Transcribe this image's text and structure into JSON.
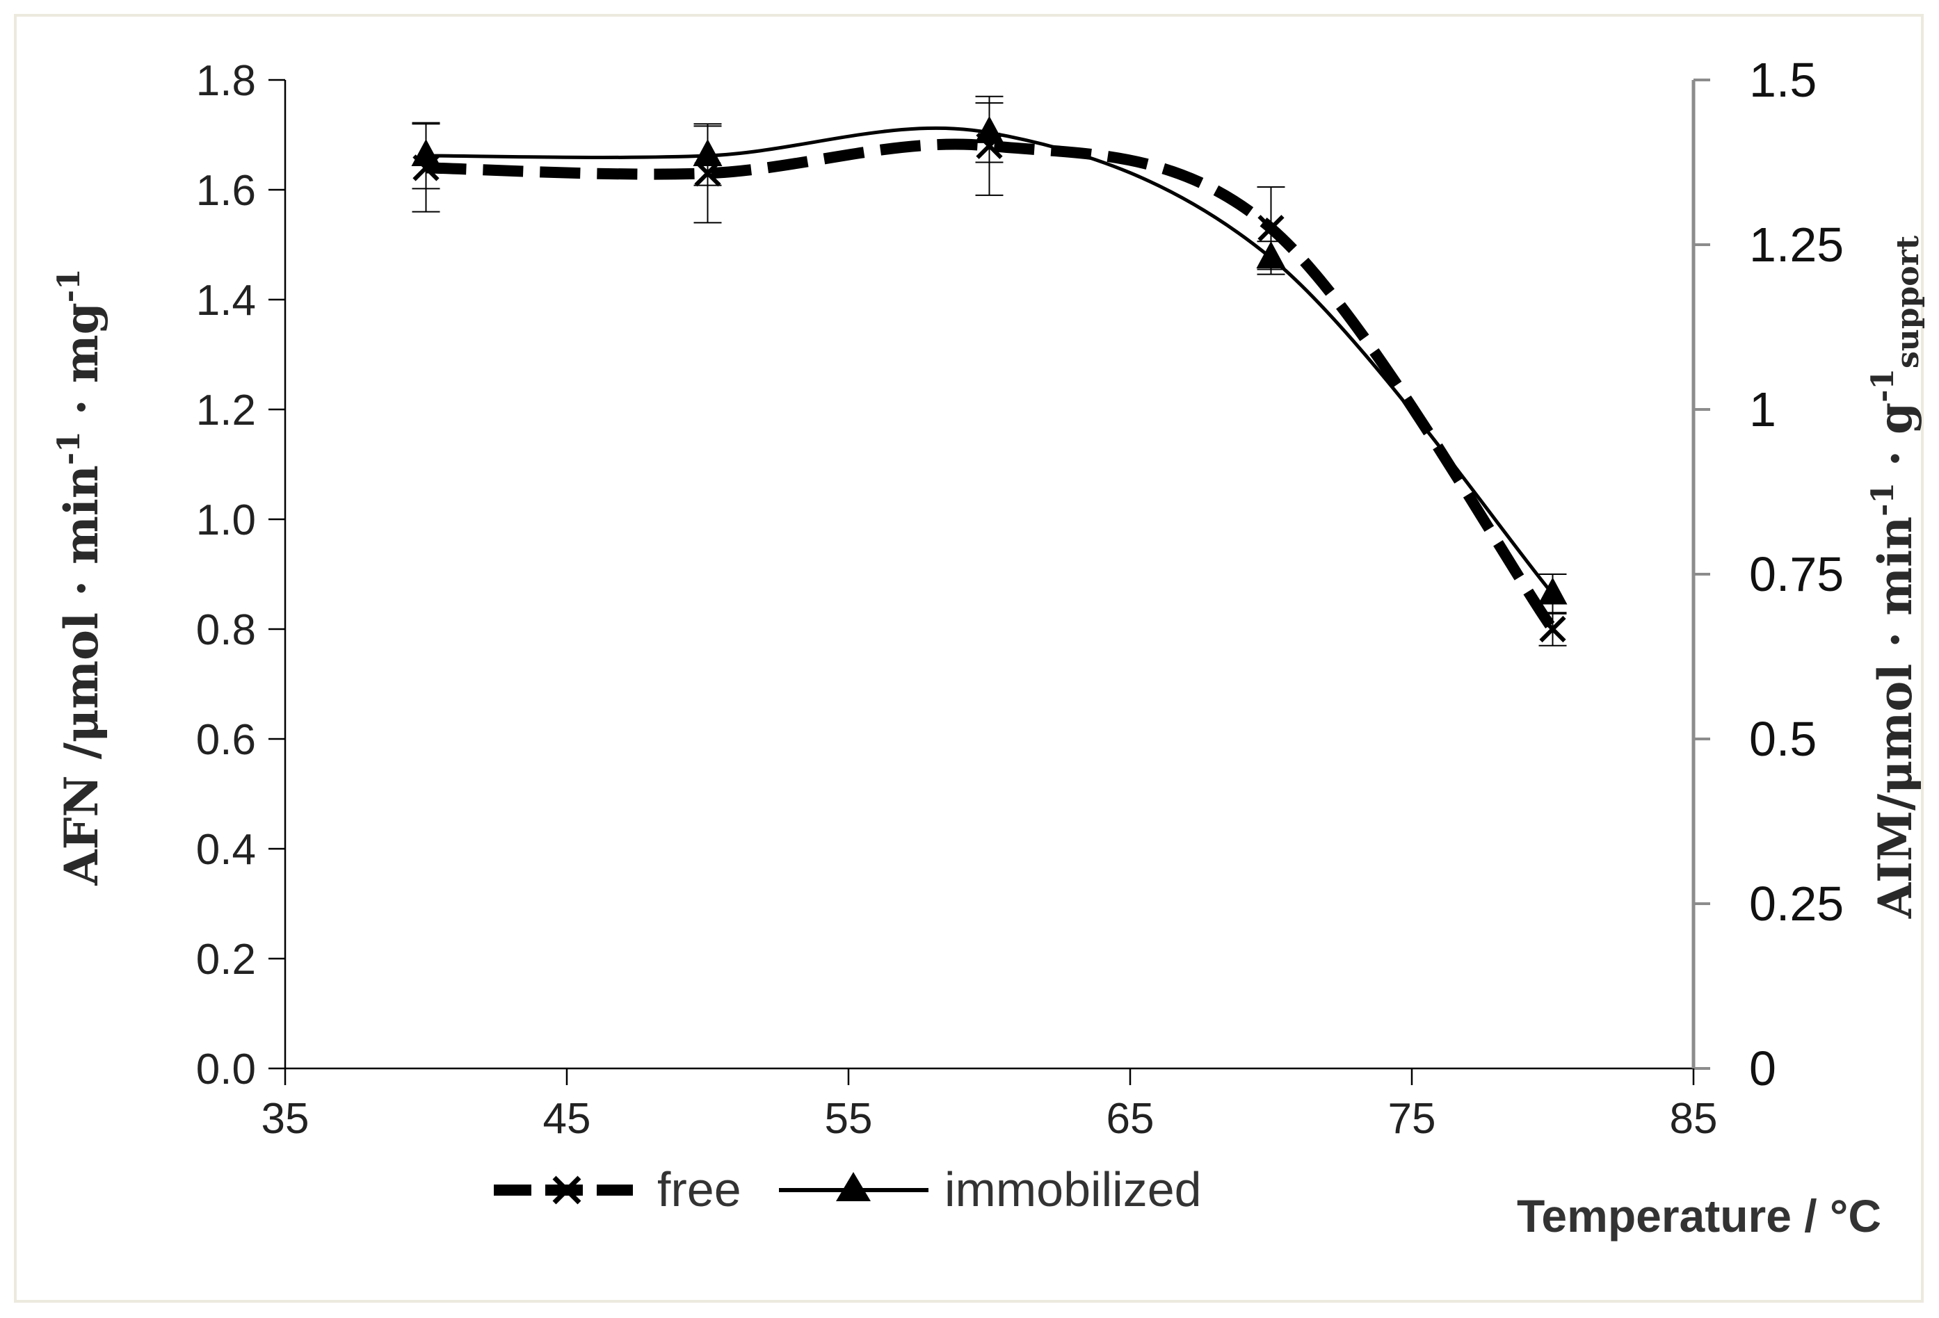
{
  "chart_data": {
    "type": "line",
    "title": "",
    "x": [
      40,
      50,
      60,
      70,
      80
    ],
    "xlim": [
      35,
      85
    ],
    "xticks": [
      "35",
      "45",
      "55",
      "65",
      "75",
      "85"
    ],
    "xlabel": "Temperature / °C",
    "ylim": [
      0,
      1.8
    ],
    "yticks": [
      "0.0",
      "0.2",
      "0.4",
      "0.6",
      "0.8",
      "1.0",
      "1.2",
      "1.4",
      "1.6",
      "1.8"
    ],
    "ylabel": {
      "main": "AFN  /μmol · min",
      "sup1": "-1",
      "mid": " · mg",
      "sup2": "-1"
    },
    "y2lim": [
      0,
      1.5
    ],
    "y2ticks": [
      "0",
      "0.25",
      "0.5",
      "0.75",
      "1",
      "1.25",
      "1.5"
    ],
    "y2label": {
      "main": "AIM/μmol · min",
      "sup1": "-1",
      "mid": " · g",
      "sup2": "-1",
      "sub": "support"
    },
    "series": [
      {
        "name": "free",
        "axis": "left",
        "marker": "x",
        "style": "dashed",
        "values": [
          1.64,
          1.63,
          1.68,
          1.53,
          0.8
        ],
        "errors": [
          0.08,
          0.09,
          0.09,
          0.075,
          0.03
        ]
      },
      {
        "name": "immobilized",
        "axis": "right",
        "marker": "triangle",
        "style": "solid",
        "values": [
          1.385,
          1.385,
          1.42,
          1.23,
          0.72
        ],
        "errors": [
          0.05,
          0.045,
          0.045,
          0.025,
          0.03
        ]
      }
    ],
    "legend": {
      "position": "bottom-center",
      "items": [
        "free",
        "immobilized"
      ]
    },
    "colors": {
      "line": "#000000",
      "axis_left": "#000000",
      "axis_right": "#8c8c8c",
      "frame": "#ece9df"
    }
  }
}
